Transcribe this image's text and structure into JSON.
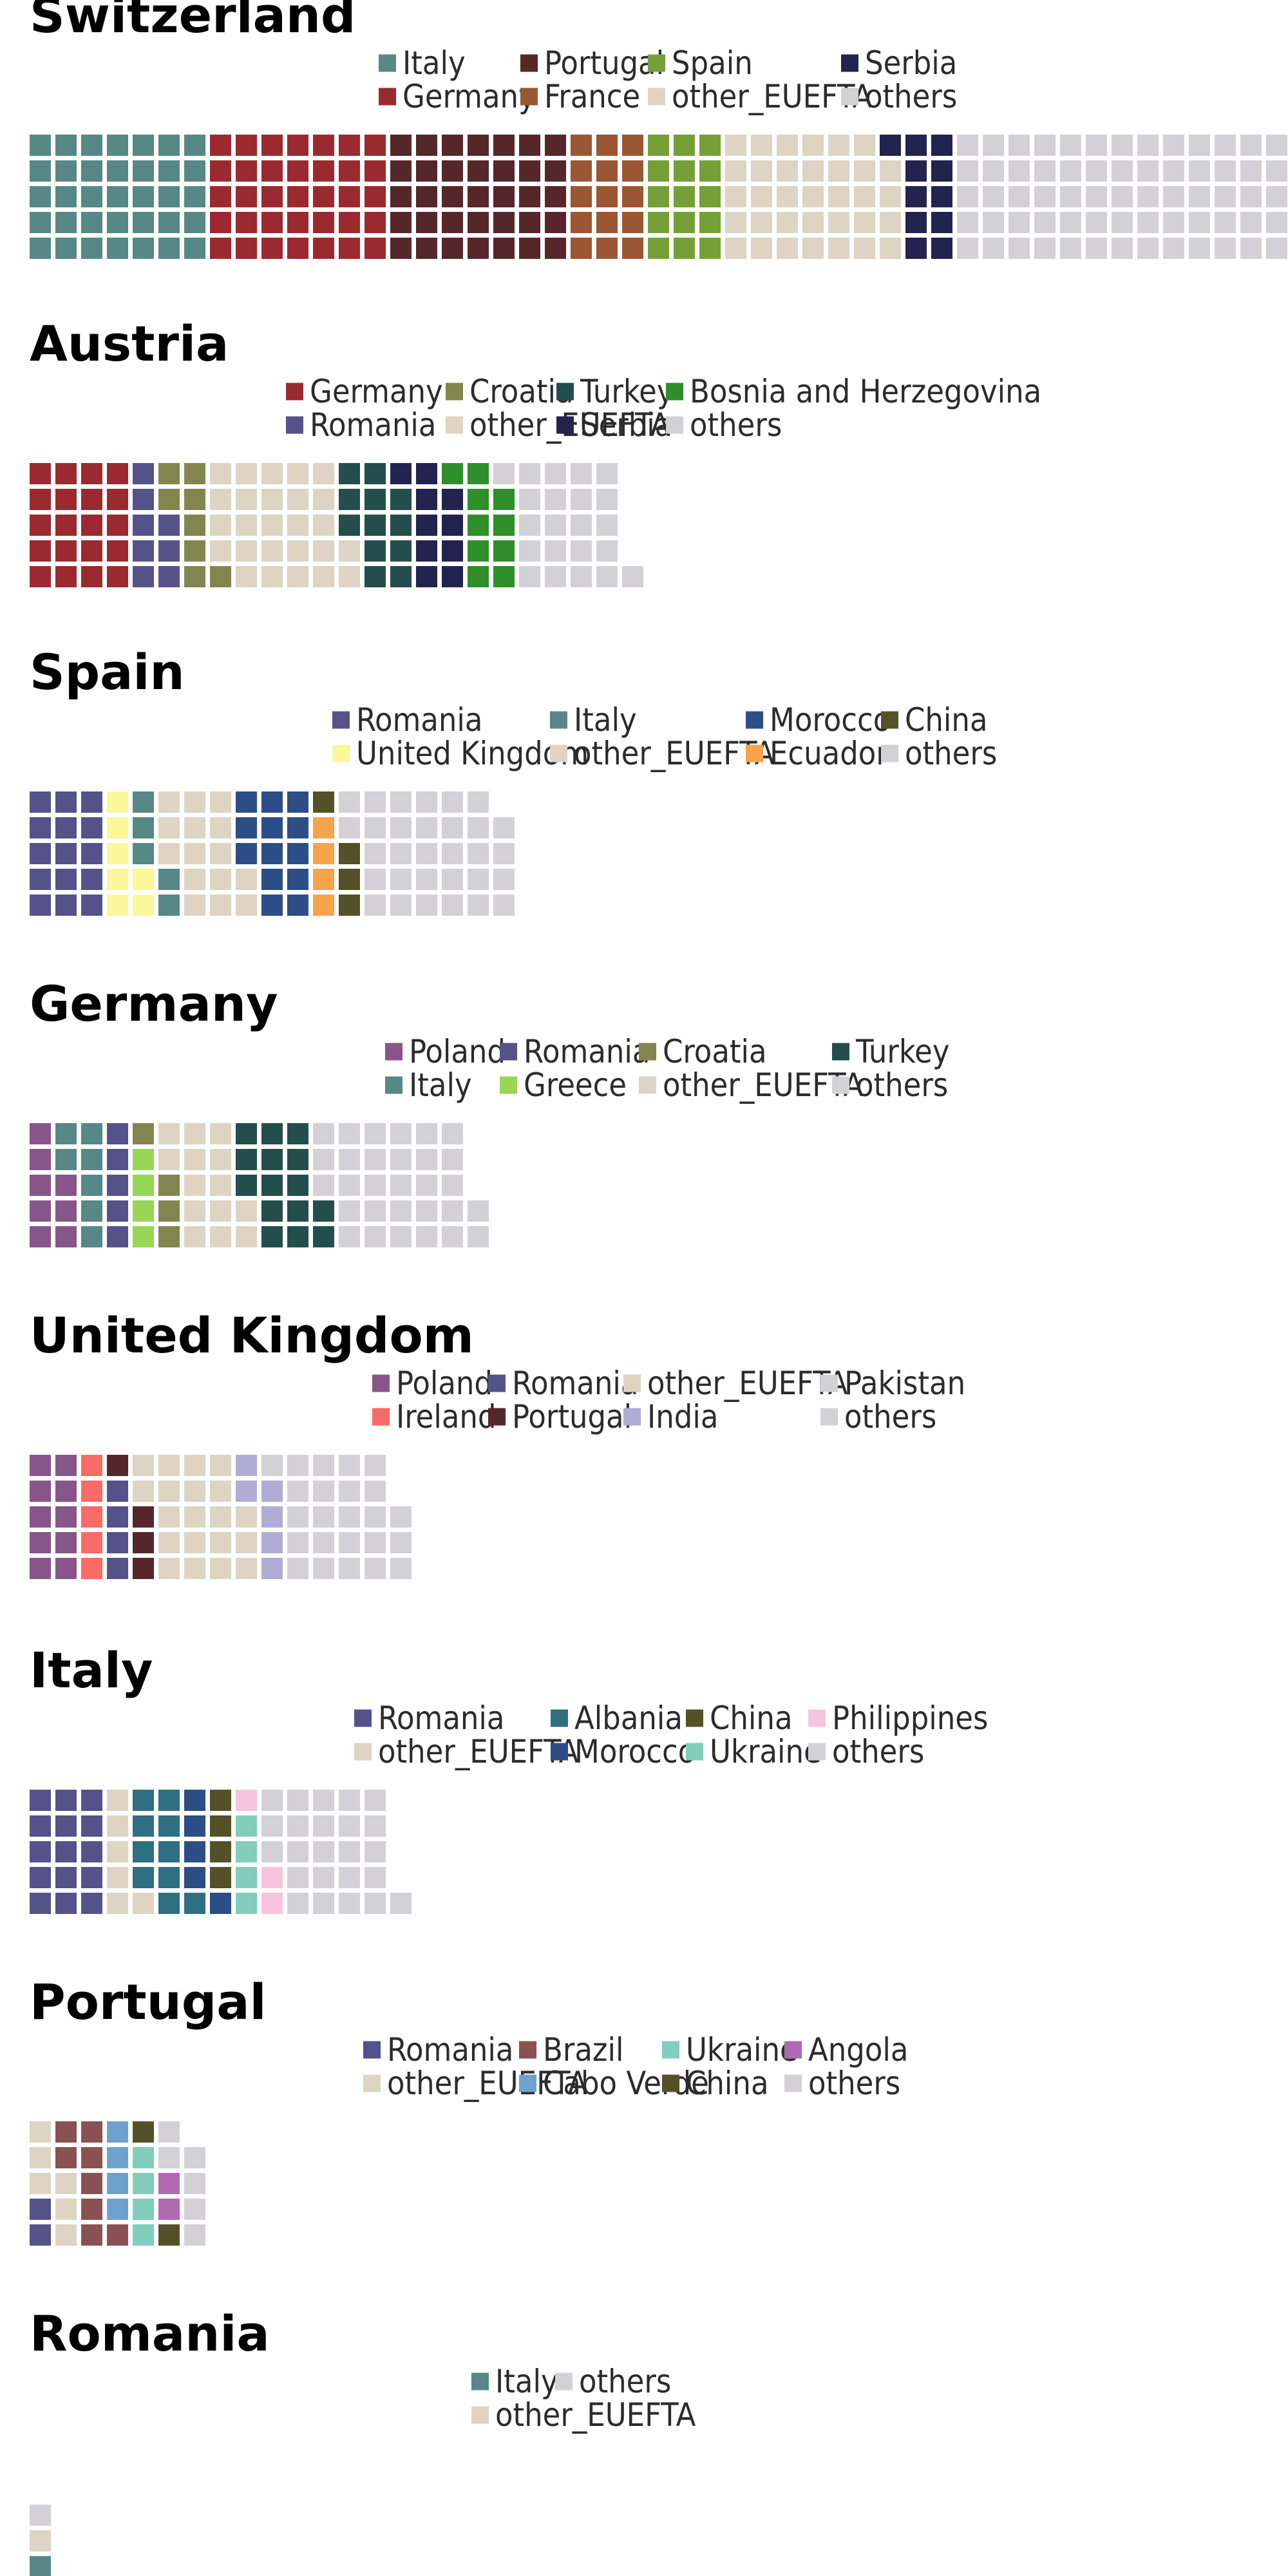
{
  "chart_data": [
    {
      "type": "waffle",
      "title": "Switzerland",
      "legend": [
        "Italy",
        "Germany",
        "Portugal",
        "France",
        "Spain",
        "other_EUEFTA",
        "Serbia",
        "others"
      ],
      "series": [
        {
          "name": "Italy",
          "units": 35,
          "color": "#568885"
        },
        {
          "name": "Germany",
          "units": 35,
          "color": "#9a2a30"
        },
        {
          "name": "Portugal",
          "units": 35,
          "color": "#55272a"
        },
        {
          "name": "France",
          "units": 15,
          "color": "#9b5633"
        },
        {
          "name": "Spain",
          "units": 15,
          "color": "#75a037"
        },
        {
          "name": "other_EUEFTA",
          "units": 34,
          "color": "#ddd4c4"
        },
        {
          "name": "Serbia",
          "units": 11,
          "color": "#232350"
        },
        {
          "name": "others",
          "units": 76,
          "color": "#d3d1d6"
        }
      ]
    },
    {
      "type": "waffle",
      "title": "Austria",
      "legend": [
        "Germany",
        "Romania",
        "Croatia",
        "other_EUEFTA",
        "Turkey",
        "Serbia",
        "Bosnia and Herzegovina",
        "others"
      ],
      "series": [
        {
          "name": "Germany",
          "units": 20,
          "color": "#9a2a30"
        },
        {
          "name": "Romania",
          "units": 8,
          "color": "#555289"
        },
        {
          "name": "Croatia",
          "units": 8,
          "color": "#82854e"
        },
        {
          "name": "other_EUEFTA",
          "units": 26,
          "color": "#ddd4c4"
        },
        {
          "name": "Turkey",
          "units": 12,
          "color": "#234e4c"
        },
        {
          "name": "Serbia",
          "units": 10,
          "color": "#232350"
        },
        {
          "name": "Bosnia and Herzegovina",
          "units": 10,
          "color": "#2f8f2a"
        },
        {
          "name": "others",
          "units": 22,
          "color": "#d3d1d6"
        }
      ]
    },
    {
      "type": "waffle",
      "title": "Spain",
      "legend": [
        "Romania",
        "United Kingdom",
        "Italy",
        "other_EUEFTA",
        "Morocco",
        "Ecuador",
        "China",
        "others"
      ],
      "series": [
        {
          "name": "Romania",
          "units": 15,
          "color": "#555289"
        },
        {
          "name": "United Kingdom",
          "units": 7,
          "color": "#faf898"
        },
        {
          "name": "Italy",
          "units": 5,
          "color": "#568885"
        },
        {
          "name": "other_EUEFTA",
          "units": 15,
          "color": "#ddd4c4"
        },
        {
          "name": "Morocco",
          "units": 13,
          "color": "#2d4d86"
        },
        {
          "name": "Ecuador",
          "units": 4,
          "color": "#f7a34b"
        },
        {
          "name": "China",
          "units": 4,
          "color": "#545129"
        },
        {
          "name": "others",
          "units": 31,
          "color": "#d3d1d6"
        }
      ]
    },
    {
      "type": "waffle",
      "title": "Germany",
      "legend": [
        "Poland",
        "Italy",
        "Romania",
        "Greece",
        "Croatia",
        "other_EUEFTA",
        "Turkey",
        "others"
      ],
      "series": [
        {
          "name": "Poland",
          "units": 8,
          "color": "#88558a"
        },
        {
          "name": "Italy",
          "units": 7,
          "color": "#568885"
        },
        {
          "name": "Romania",
          "units": 5,
          "color": "#555289"
        },
        {
          "name": "Greece",
          "units": 4,
          "color": "#98d655"
        },
        {
          "name": "Croatia",
          "units": 4,
          "color": "#82854e"
        },
        {
          "name": "other_EUEFTA",
          "units": 14,
          "color": "#ddd4c4"
        },
        {
          "name": "Turkey",
          "units": 15,
          "color": "#234e4c"
        },
        {
          "name": "others",
          "units": 30,
          "color": "#d3d1d6"
        }
      ]
    },
    {
      "type": "waffle",
      "title": "United Kingdom",
      "legend": [
        "Poland",
        "Ireland",
        "Romania",
        "Portugal",
        "other_EUEFTA",
        "India",
        "Pakistan",
        "others"
      ],
      "series": [
        {
          "name": "Poland",
          "units": 10,
          "color": "#88558a"
        },
        {
          "name": "Ireland",
          "units": 5,
          "color": "#fa6a66"
        },
        {
          "name": "Romania",
          "units": 4,
          "color": "#555289"
        },
        {
          "name": "Portugal",
          "units": 4,
          "color": "#55272a"
        },
        {
          "name": "other_EUEFTA",
          "units": 20,
          "color": "#ddd4c4"
        },
        {
          "name": "India",
          "units": 6,
          "color": "#b1acd6"
        },
        {
          "name": "Pakistan",
          "units": 1,
          "color": "#d3d1d6"
        },
        {
          "name": "others",
          "units": 23,
          "color": "#d3d1d6"
        }
      ]
    },
    {
      "type": "waffle",
      "title": "Italy",
      "legend": [
        "Romania",
        "other_EUEFTA",
        "Albania",
        "Morocco",
        "China",
        "Ukraine",
        "Philippines",
        "others"
      ],
      "series": [
        {
          "name": "Romania",
          "units": 15,
          "color": "#555289"
        },
        {
          "name": "other_EUEFTA",
          "units": 6,
          "color": "#ddd4c4"
        },
        {
          "name": "Albania",
          "units": 10,
          "color": "#2e6f82"
        },
        {
          "name": "Morocco",
          "units": 5,
          "color": "#2d4d86"
        },
        {
          "name": "China",
          "units": 4,
          "color": "#545129"
        },
        {
          "name": "Ukraine",
          "units": 4,
          "color": "#82cdbb"
        },
        {
          "name": "Philippines",
          "units": 3,
          "color": "#f6c4dc"
        },
        {
          "name": "others",
          "units": 24,
          "color": "#d3d1d6"
        }
      ]
    },
    {
      "type": "waffle",
      "title": "Portugal",
      "legend": [
        "Romania",
        "other_EUEFTA",
        "Brazil",
        "Cabo Verde",
        "Ukraine",
        "China",
        "Angola",
        "others"
      ],
      "series": [
        {
          "name": "Romania",
          "units": 2,
          "color": "#555289"
        },
        {
          "name": "other_EUEFTA",
          "units": 6,
          "color": "#ddd4c4"
        },
        {
          "name": "Brazil",
          "units": 8,
          "color": "#8a5155"
        },
        {
          "name": "Cabo Verde",
          "units": 4,
          "color": "#6fa1ce"
        },
        {
          "name": "Ukraine",
          "units": 4,
          "color": "#82cdbb"
        },
        {
          "name": "China",
          "units": 2,
          "color": "#545129"
        },
        {
          "name": "Angola",
          "units": 2,
          "color": "#b06ab1"
        },
        {
          "name": "others",
          "units": 6,
          "color": "#d3d1d6"
        }
      ]
    },
    {
      "type": "waffle",
      "title": "Romania",
      "legend": [
        "Italy",
        "other_EUEFTA",
        "others"
      ],
      "series": [
        {
          "name": "Italy",
          "units": 1,
          "color": "#568885"
        },
        {
          "name": "other_EUEFTA",
          "units": 1,
          "color": "#ddd4c4"
        },
        {
          "name": "others",
          "units": 1,
          "color": "#d3d1d6"
        }
      ]
    }
  ]
}
